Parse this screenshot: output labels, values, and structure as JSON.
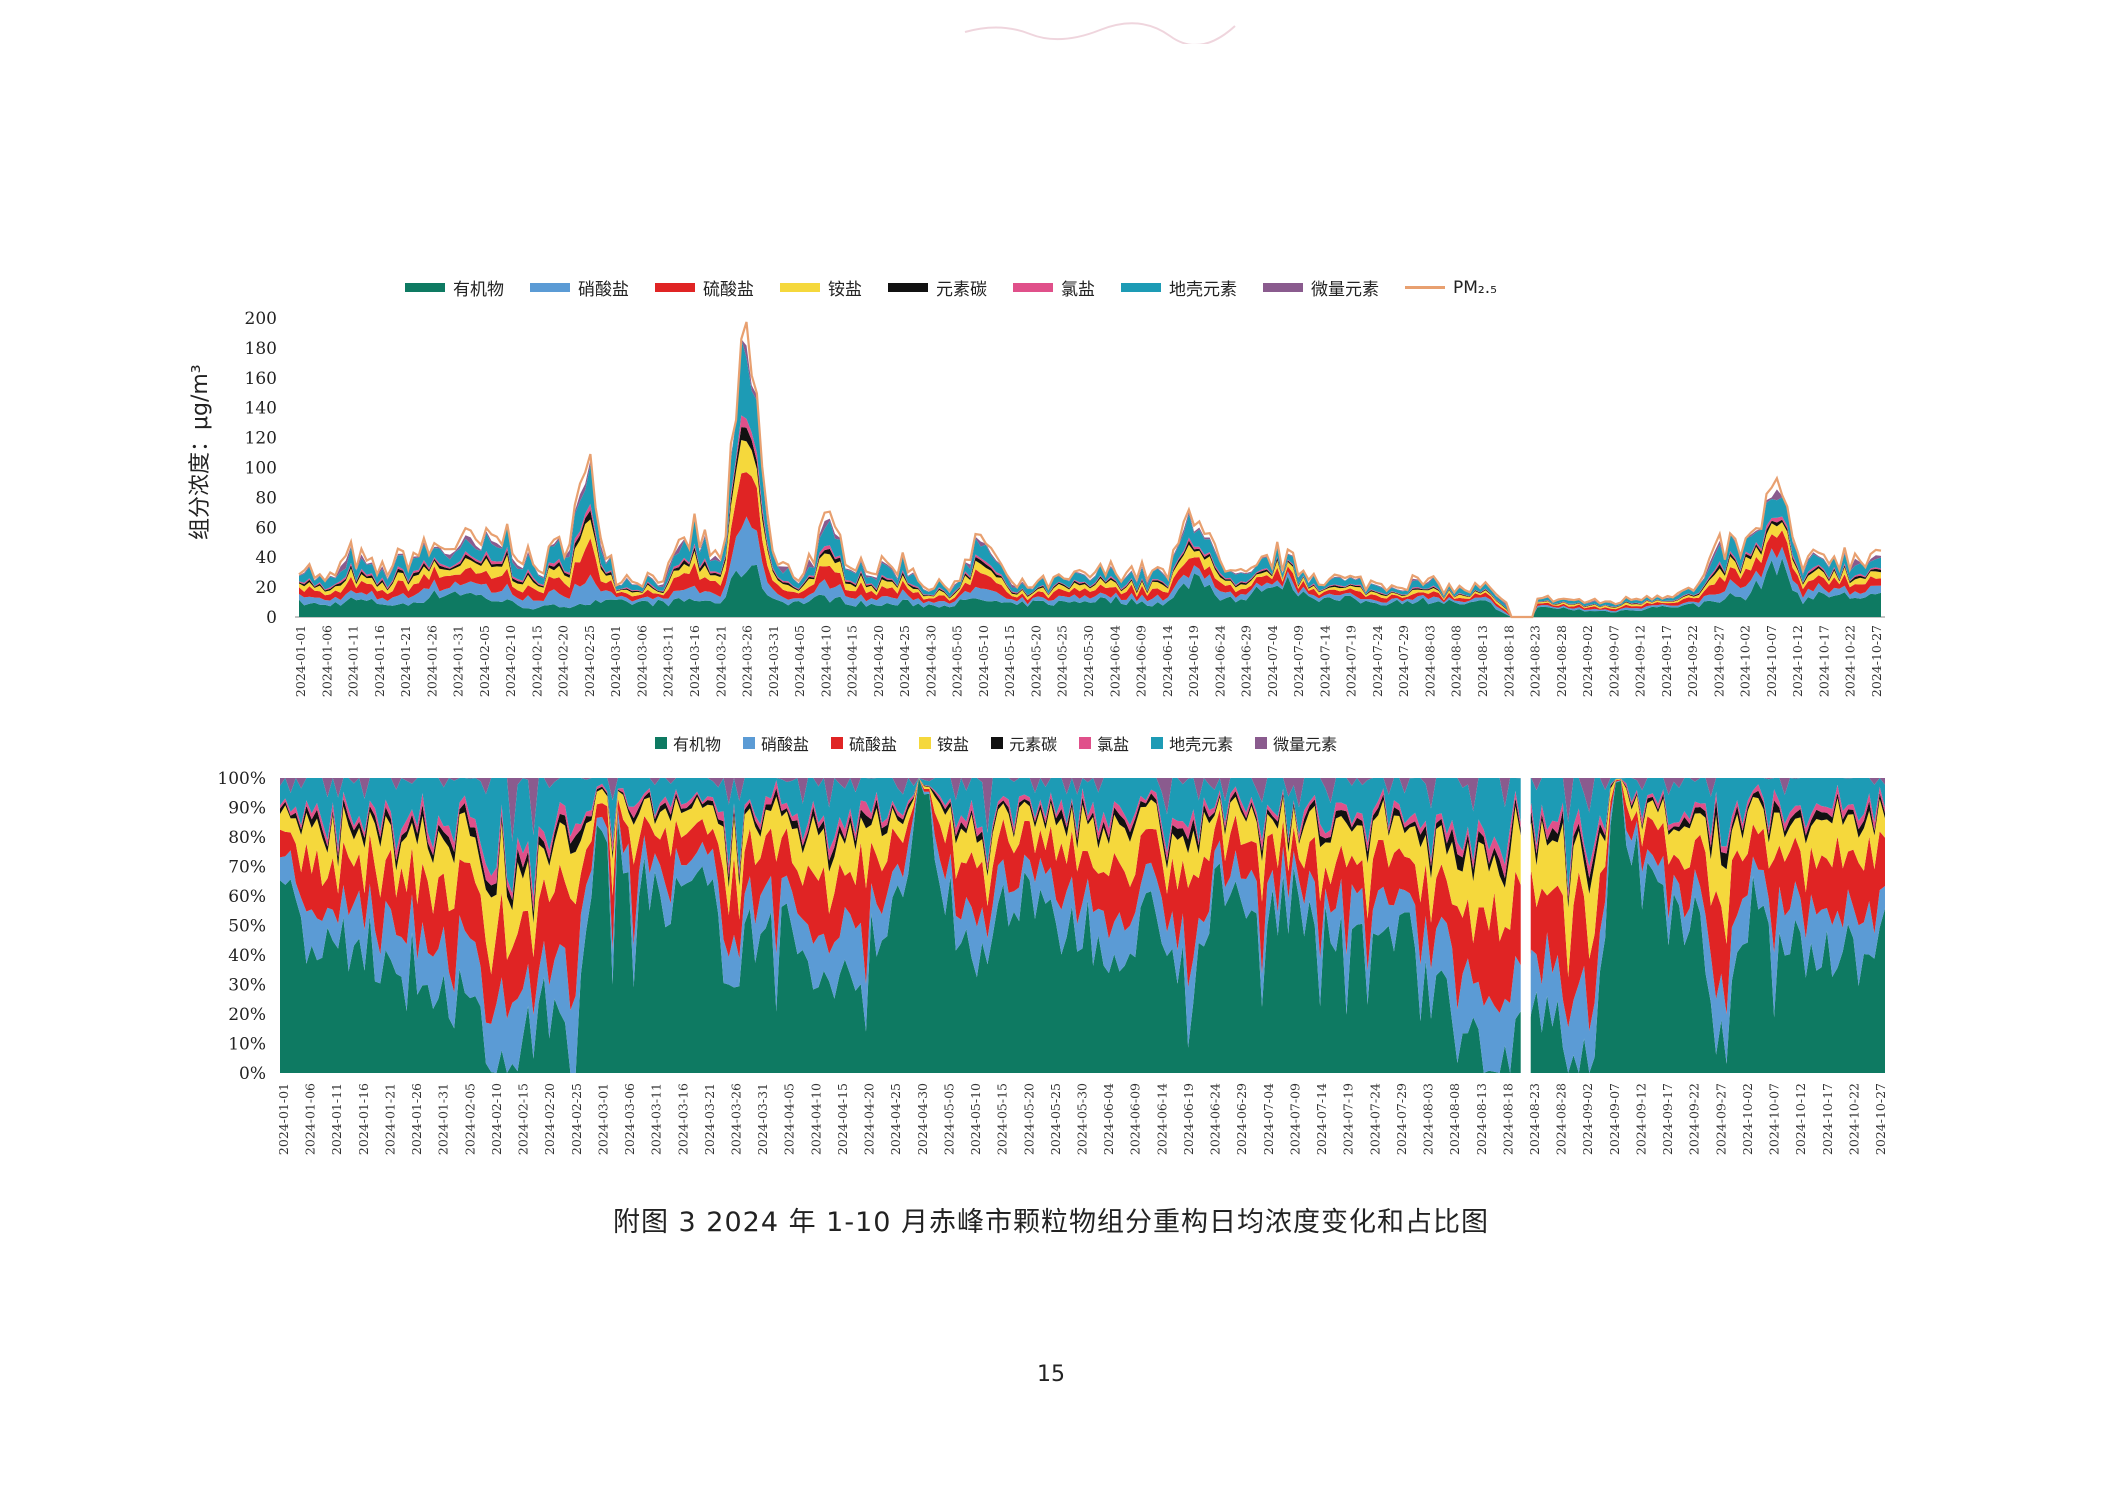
{
  "stamp_text": "",
  "figure": {
    "caption": "附图 3   2024 年 1-10 月赤峰市颗粒物组分重构日均浓度变化和占比图",
    "page_number": "15"
  },
  "legend_top": [
    {
      "name": "有机物",
      "color": "#0e7a62",
      "kind": "box"
    },
    {
      "name": "硝酸盐",
      "color": "#5b9bd5",
      "kind": "box"
    },
    {
      "name": "硫酸盐",
      "color": "#e02424",
      "kind": "box"
    },
    {
      "name": "铵盐",
      "color": "#f5d83c",
      "kind": "box"
    },
    {
      "name": "元素碳",
      "color": "#111111",
      "kind": "box"
    },
    {
      "name": "氯盐",
      "color": "#e0508a",
      "kind": "box"
    },
    {
      "name": "地壳元素",
      "color": "#1d9bb5",
      "kind": "box"
    },
    {
      "name": "微量元素",
      "color": "#8a5b8e",
      "kind": "box"
    },
    {
      "name": "PM₂.₅",
      "color": "#e8a070",
      "kind": "line"
    }
  ],
  "legend_bottom": [
    {
      "name": "有机物",
      "color": "#0e7a62"
    },
    {
      "name": "硝酸盐",
      "color": "#5b9bd5"
    },
    {
      "name": "硫酸盐",
      "color": "#e02424"
    },
    {
      "name": "铵盐",
      "color": "#f5d83c"
    },
    {
      "name": "元素碳",
      "color": "#111111"
    },
    {
      "name": "氯盐",
      "color": "#e0508a"
    },
    {
      "name": "地壳元素",
      "color": "#1d9bb5"
    },
    {
      "name": "微量元素",
      "color": "#8a5b8e"
    }
  ],
  "chart_data": [
    {
      "type": "area",
      "stacked": true,
      "ylabel": "组分浓度：μg/m³",
      "ylim": [
        0,
        200
      ],
      "yticks": [
        0,
        20,
        40,
        60,
        80,
        100,
        120,
        140,
        160,
        180,
        200
      ],
      "x_tick_labels": [
        "2024-01-01",
        "2024-01-06",
        "2024-01-11",
        "2024-01-16",
        "2024-01-21",
        "2024-01-26",
        "2024-01-31",
        "2024-02-05",
        "2024-02-10",
        "2024-02-15",
        "2024-02-20",
        "2024-02-25",
        "2024-03-01",
        "2024-03-06",
        "2024-03-11",
        "2024-03-16",
        "2024-03-21",
        "2024-03-26",
        "2024-03-31",
        "2024-04-05",
        "2024-04-10",
        "2024-04-15",
        "2024-04-20",
        "2024-04-25",
        "2024-04-30",
        "2024-05-05",
        "2024-05-10",
        "2024-05-15",
        "2024-05-20",
        "2024-05-25",
        "2024-05-30",
        "2024-06-04",
        "2024-06-09",
        "2024-06-14",
        "2024-06-19",
        "2024-06-24",
        "2024-06-29",
        "2024-07-04",
        "2024-07-09",
        "2024-07-14",
        "2024-07-19",
        "2024-07-24",
        "2024-07-29",
        "2024-08-03",
        "2024-08-08",
        "2024-08-13",
        "2024-08-18",
        "2024-08-23",
        "2024-08-28",
        "2024-09-02",
        "2024-09-07",
        "2024-09-12",
        "2024-09-17",
        "2024-09-22",
        "2024-09-27",
        "2024-10-02",
        "2024-10-07",
        "2024-10-12",
        "2024-10-17",
        "2024-10-22",
        "2024-10-27"
      ],
      "pm25_approx_by_tick": [
        38,
        22,
        42,
        30,
        40,
        45,
        50,
        48,
        55,
        30,
        50,
        95,
        28,
        26,
        30,
        58,
        35,
        188,
        35,
        28,
        60,
        40,
        32,
        38,
        18,
        26,
        55,
        20,
        22,
        24,
        28,
        32,
        30,
        28,
        82,
        28,
        26,
        42,
        32,
        26,
        24,
        22,
        24,
        22,
        18,
        20,
        5,
        12,
        12,
        10,
        10,
        14,
        16,
        18,
        48,
        46,
        88,
        32,
        42,
        40,
        46
      ],
      "organic_approx_by_tick": [
        10,
        8,
        12,
        10,
        8,
        15,
        18,
        14,
        10,
        6,
        8,
        10,
        10,
        10,
        10,
        12,
        10,
        40,
        12,
        10,
        14,
        10,
        8,
        10,
        8,
        10,
        12,
        8,
        10,
        10,
        12,
        12,
        10,
        10,
        30,
        14,
        12,
        30,
        18,
        12,
        12,
        10,
        12,
        12,
        10,
        10,
        0,
        6,
        6,
        4,
        4,
        6,
        8,
        8,
        14,
        14,
        40,
        12,
        16,
        14,
        16
      ]
    },
    {
      "type": "area",
      "stacked": true,
      "percent": true,
      "ylim": [
        0,
        100
      ],
      "yticks": [
        "0%",
        "10%",
        "20%",
        "30%",
        "40%",
        "50%",
        "60%",
        "70%",
        "80%",
        "90%",
        "100%"
      ],
      "x_tick_labels": [
        "2024-01-01",
        "2024-01-06",
        "2024-01-11",
        "2024-01-16",
        "2024-01-21",
        "2024-01-26",
        "2024-01-31",
        "2024-02-05",
        "2024-02-10",
        "2024-02-15",
        "2024-02-20",
        "2024-02-25",
        "2024-03-01",
        "2024-03-06",
        "2024-03-11",
        "2024-03-16",
        "2024-03-21",
        "2024-03-26",
        "2024-03-31",
        "2024-04-05",
        "2024-04-10",
        "2024-04-15",
        "2024-04-20",
        "2024-04-25",
        "2024-04-30",
        "2024-05-05",
        "2024-05-10",
        "2024-05-15",
        "2024-05-20",
        "2024-05-25",
        "2024-05-30",
        "2024-06-04",
        "2024-06-09",
        "2024-06-14",
        "2024-06-19",
        "2024-06-24",
        "2024-06-29",
        "2024-07-04",
        "2024-07-09",
        "2024-07-14",
        "2024-07-19",
        "2024-07-24",
        "2024-07-29",
        "2024-08-03",
        "2024-08-08",
        "2024-08-13",
        "2024-08-18",
        "2024-08-23",
        "2024-08-28",
        "2024-09-02",
        "2024-09-07",
        "2024-09-12",
        "2024-09-17",
        "2024-09-22",
        "2024-09-27",
        "2024-10-02",
        "2024-10-07",
        "2024-10-12",
        "2024-10-17",
        "2024-10-22",
        "2024-10-27"
      ],
      "organic_pct_approx_by_tick": [
        75,
        40,
        40,
        45,
        40,
        40,
        30,
        20,
        5,
        3,
        30,
        5,
        85,
        75,
        65,
        55,
        60,
        30,
        55,
        45,
        40,
        30,
        45,
        50,
        100,
        60,
        30,
        62,
        55,
        50,
        50,
        45,
        50,
        55,
        30,
        60,
        55,
        55,
        60,
        55,
        50,
        45,
        50,
        45,
        10,
        5,
        0,
        40,
        10,
        3,
        100,
        60,
        55,
        50,
        5,
        55,
        50,
        45,
        40,
        40,
        45
      ]
    }
  ]
}
